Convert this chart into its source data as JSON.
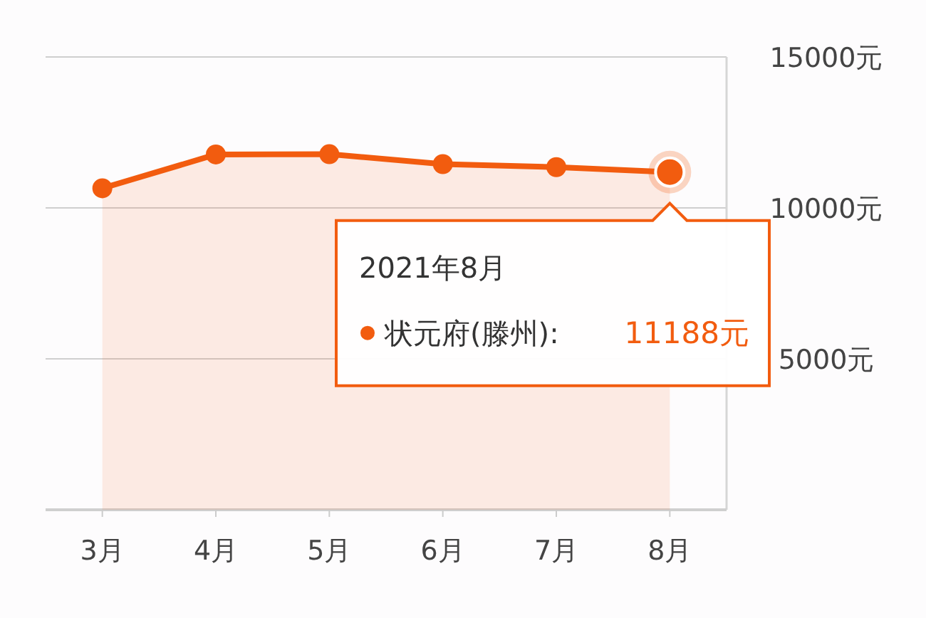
{
  "chart_data": {
    "type": "area",
    "categories": [
      "3月",
      "4月",
      "5月",
      "6月",
      "7月",
      "8月"
    ],
    "series": [
      {
        "name": "状元府(滕州):",
        "color": "#f25c0f",
        "values": [
          10650,
          11770,
          11780,
          11450,
          11350,
          11188
        ]
      }
    ],
    "ylim": [
      0,
      15000
    ],
    "yticks": [
      {
        "value": 0,
        "label": null
      },
      {
        "value": 5000,
        "label": "5000元"
      },
      {
        "value": 10000,
        "label": "10000元"
      },
      {
        "value": 15000,
        "label": "15000元"
      }
    ],
    "grid": "y",
    "marker": "circle",
    "annotations": [
      "2021年8月",
      "11188元"
    ]
  }
}
